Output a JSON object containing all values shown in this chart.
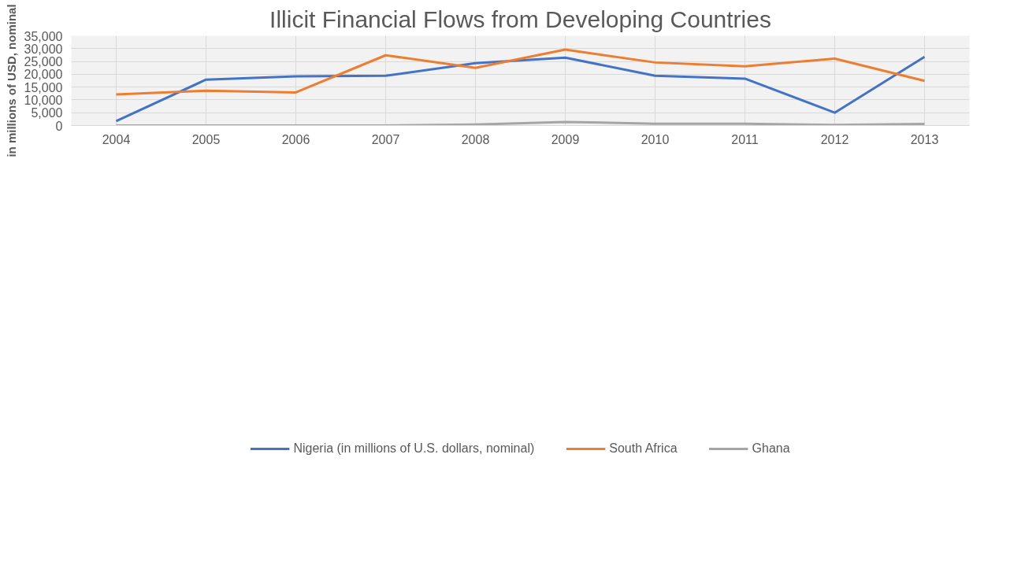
{
  "chart_data": {
    "type": "line",
    "title": "Illicit Financial Flows from Developing Countries",
    "ylabel": "in millions of USD, nominal",
    "categories": [
      "2004",
      "2005",
      "2006",
      "2007",
      "2008",
      "2009",
      "2010",
      "2011",
      "2012",
      "2013"
    ],
    "series": [
      {
        "name": "Nigeria (in millions of U.S. dollars, nominal)",
        "color": "#4472c4",
        "values": [
          1700,
          17900,
          19200,
          19400,
          24300,
          26500,
          19400,
          18300,
          5000,
          26800
        ]
      },
      {
        "name": "South Africa",
        "color": "#ed7d31",
        "values": [
          12100,
          13600,
          12900,
          27400,
          22500,
          29600,
          24600,
          23100,
          26100,
          17400
        ]
      },
      {
        "name": "Ghana",
        "color": "#a5a5a5",
        "values": [
          0,
          0,
          0,
          0,
          400,
          1400,
          700,
          700,
          200,
          600
        ]
      }
    ],
    "ylim": [
      0,
      35000
    ],
    "yticks": [
      {
        "value": 0,
        "label": "0"
      },
      {
        "value": 5000,
        "label": "5,000"
      },
      {
        "value": 10000,
        "label": "10,000"
      },
      {
        "value": 15000,
        "label": "15,000"
      },
      {
        "value": 20000,
        "label": "20,000"
      },
      {
        "value": 25000,
        "label": "25,000"
      },
      {
        "value": 30000,
        "label": "30,000"
      },
      {
        "value": 35000,
        "label": "35,000"
      }
    ],
    "grid": true,
    "legend": "bottom",
    "line_style": "solid",
    "marker": "none"
  }
}
